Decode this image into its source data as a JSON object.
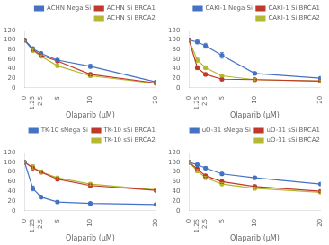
{
  "chart_data": [
    {
      "type": "line",
      "xlabel": "Olaparib (μM)",
      "x": [
        0,
        1.25,
        2.5,
        5,
        10,
        20
      ],
      "xlim": [
        0,
        20
      ],
      "xticks": [
        0,
        1.25,
        2.5,
        5,
        10,
        20
      ],
      "ylim": [
        0,
        120
      ],
      "yticks": [
        0,
        20,
        40,
        60,
        80,
        100,
        120
      ],
      "grid": false,
      "legend": "upper right",
      "marker": "o",
      "series": [
        {
          "name": "ACHN Nega Si",
          "color": "#4472c4",
          "values": [
            100,
            82,
            72,
            58,
            45,
            12
          ],
          "errors": [
            2,
            3,
            3,
            3,
            4,
            2
          ]
        },
        {
          "name": "ACHN Si BRCA1",
          "color": "#c0392b",
          "values": [
            100,
            80,
            68,
            56,
            28,
            10
          ],
          "errors": [
            2,
            3,
            3,
            3,
            3,
            2
          ]
        },
        {
          "name": "ACHN Si BRCA2",
          "color": "#b5b832",
          "values": [
            100,
            78,
            66,
            46,
            25,
            9
          ],
          "errors": [
            2,
            3,
            3,
            3,
            3,
            2
          ]
        }
      ]
    },
    {
      "type": "line",
      "xlabel": "Olaparib (μM)",
      "x": [
        0,
        1.25,
        2.5,
        5,
        10,
        20
      ],
      "xlim": [
        0,
        20
      ],
      "xticks": [
        0,
        1.25,
        2.5,
        5,
        10,
        20
      ],
      "ylim": [
        0,
        120
      ],
      "yticks": [
        0,
        20,
        40,
        60,
        80,
        100,
        120
      ],
      "grid": false,
      "legend": "upper right",
      "marker": "o",
      "series": [
        {
          "name": "CAKI-1 Nega Si",
          "color": "#4472c4",
          "values": [
            100,
            96,
            88,
            68,
            30,
            20
          ],
          "errors": [
            2,
            4,
            5,
            6,
            3,
            2
          ]
        },
        {
          "name": "CAKI-1 Si BRCA1",
          "color": "#c0392b",
          "values": [
            100,
            42,
            28,
            18,
            17,
            14
          ],
          "errors": [
            2,
            4,
            3,
            3,
            2,
            2
          ]
        },
        {
          "name": "CAKI-1 Si BRCA2",
          "color": "#b5b832",
          "values": [
            100,
            58,
            42,
            25,
            17,
            14
          ],
          "errors": [
            2,
            5,
            4,
            3,
            2,
            2
          ]
        }
      ]
    },
    {
      "type": "line",
      "xlabel": "Olaparib (μM)",
      "x": [
        0,
        1.25,
        2.5,
        5,
        10,
        20
      ],
      "xlim": [
        0,
        20
      ],
      "xticks": [
        0,
        1.25,
        2.5,
        5,
        10,
        20
      ],
      "ylim": [
        0,
        120
      ],
      "yticks": [
        0,
        20,
        40,
        60,
        80,
        100,
        120
      ],
      "grid": false,
      "legend": "upper right",
      "marker": "o",
      "series": [
        {
          "name": "TK-10 sNega Si",
          "color": "#4472c4",
          "values": [
            100,
            46,
            28,
            18,
            15,
            13
          ],
          "errors": [
            2,
            5,
            3,
            2,
            2,
            2
          ]
        },
        {
          "name": "TK-10 sSi BRCA1",
          "color": "#c0392b",
          "values": [
            100,
            88,
            80,
            65,
            52,
            42
          ],
          "errors": [
            2,
            6,
            4,
            3,
            3,
            2
          ]
        },
        {
          "name": "TK-10 sSi BRCA2",
          "color": "#b5b832",
          "values": [
            100,
            90,
            80,
            68,
            55,
            43
          ],
          "errors": [
            2,
            4,
            4,
            3,
            3,
            2
          ]
        }
      ]
    },
    {
      "type": "line",
      "xlabel": "Olaparib (μM)",
      "x": [
        0,
        1.25,
        2.5,
        5,
        10,
        20
      ],
      "xlim": [
        0,
        20
      ],
      "xticks": [
        0,
        1.25,
        2.5,
        5,
        10,
        20
      ],
      "ylim": [
        0,
        120
      ],
      "yticks": [
        0,
        20,
        40,
        60,
        80,
        100,
        120
      ],
      "grid": false,
      "legend": "upper right",
      "marker": "o",
      "series": [
        {
          "name": "uO-31 sNega Si",
          "color": "#4472c4",
          "values": [
            100,
            95,
            88,
            76,
            68,
            55
          ],
          "errors": [
            2,
            3,
            3,
            3,
            3,
            2
          ]
        },
        {
          "name": "uO-31 sSi BRCA1",
          "color": "#c0392b",
          "values": [
            100,
            86,
            72,
            60,
            50,
            40
          ],
          "errors": [
            2,
            3,
            3,
            3,
            3,
            2
          ]
        },
        {
          "name": "uO-31 sSi BRCA2",
          "color": "#b5b832",
          "values": [
            100,
            82,
            68,
            55,
            46,
            38
          ],
          "errors": [
            2,
            3,
            3,
            3,
            3,
            2
          ]
        }
      ]
    }
  ]
}
